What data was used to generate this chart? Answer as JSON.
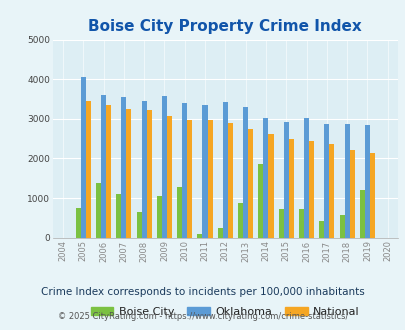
{
  "title": "Boise City Property Crime Index",
  "years": [
    2004,
    2005,
    2006,
    2007,
    2008,
    2009,
    2010,
    2011,
    2012,
    2013,
    2014,
    2015,
    2016,
    2017,
    2018,
    2019,
    2020
  ],
  "boise_city": [
    0,
    750,
    1380,
    1100,
    650,
    1050,
    1280,
    100,
    250,
    870,
    1850,
    720,
    720,
    420,
    570,
    1200,
    0
  ],
  "oklahoma": [
    0,
    4050,
    3600,
    3540,
    3450,
    3580,
    3400,
    3360,
    3420,
    3300,
    3020,
    2920,
    3020,
    2880,
    2880,
    2840,
    0
  ],
  "national": [
    0,
    3450,
    3360,
    3250,
    3220,
    3060,
    2960,
    2960,
    2890,
    2750,
    2620,
    2490,
    2450,
    2360,
    2200,
    2130,
    0
  ],
  "boise_color": "#7bc142",
  "oklahoma_color": "#5b9bd5",
  "national_color": "#f5a623",
  "bg_color": "#e8f4f8",
  "plot_bg": "#ddeef4",
  "ylim": [
    0,
    5000
  ],
  "yticks": [
    0,
    1000,
    2000,
    3000,
    4000,
    5000
  ],
  "subtitle": "Crime Index corresponds to incidents per 100,000 inhabitants",
  "footer_left": "© 2025 CityRating.com - ",
  "footer_link": "https://www.cityrating.com/crime-statistics/",
  "title_color": "#1155aa",
  "subtitle_color": "#1a3a5c",
  "footer_color": "#555555",
  "footer_link_color": "#3377cc"
}
